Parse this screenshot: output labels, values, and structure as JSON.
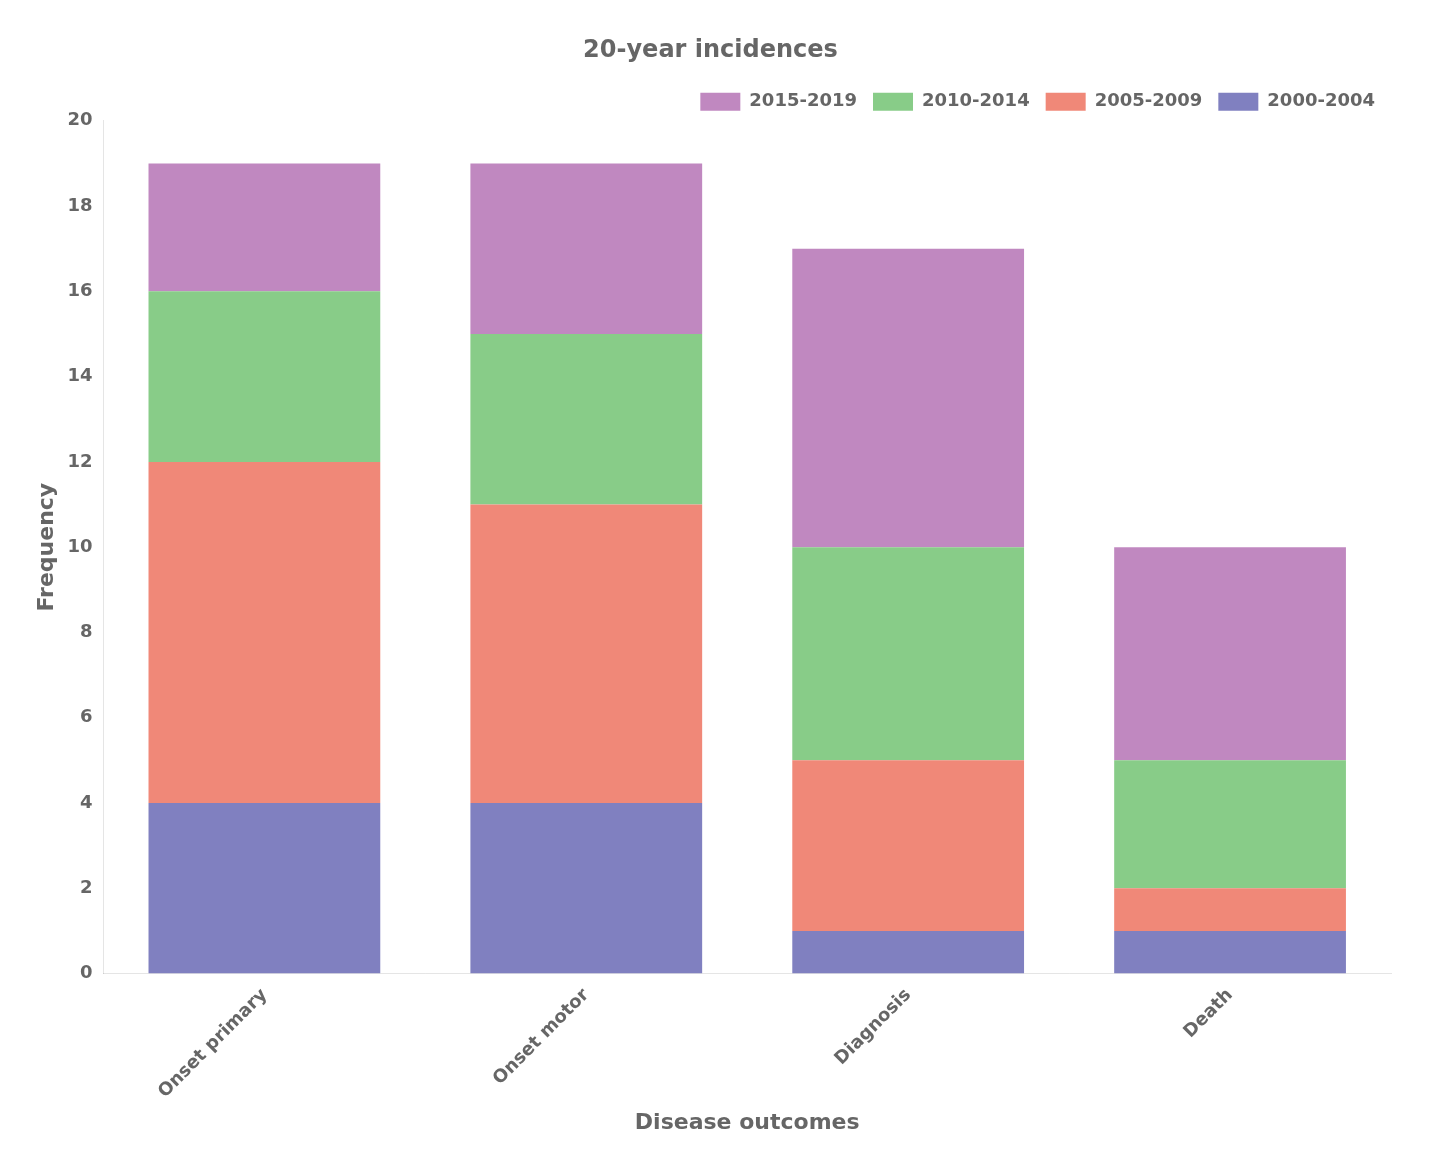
{
  "chart_data": {
    "type": "bar",
    "title": "20-year incidences",
    "xlabel": "Disease outcomes",
    "ylabel": "Frequency",
    "categories": [
      "Onset primary",
      "Onset motor",
      "Diagnosis",
      "Death"
    ],
    "series": [
      {
        "name": "2000-2004",
        "color": "#8080c0",
        "values": [
          4,
          4,
          1,
          1
        ]
      },
      {
        "name": "2005-2009",
        "color": "#f08878",
        "values": [
          8,
          7,
          4,
          1
        ]
      },
      {
        "name": "2010-2014",
        "color": "#88cc88",
        "values": [
          4,
          4,
          5,
          3
        ]
      },
      {
        "name": "2015-2019",
        "color": "#c088c0",
        "values": [
          3,
          4,
          7,
          5
        ]
      }
    ],
    "stacked": true,
    "ylim": [
      0,
      20
    ],
    "yticks": [
      0,
      2,
      4,
      6,
      8,
      10,
      12,
      14,
      16,
      18,
      20
    ],
    "grid": false,
    "legend": "upper right"
  }
}
